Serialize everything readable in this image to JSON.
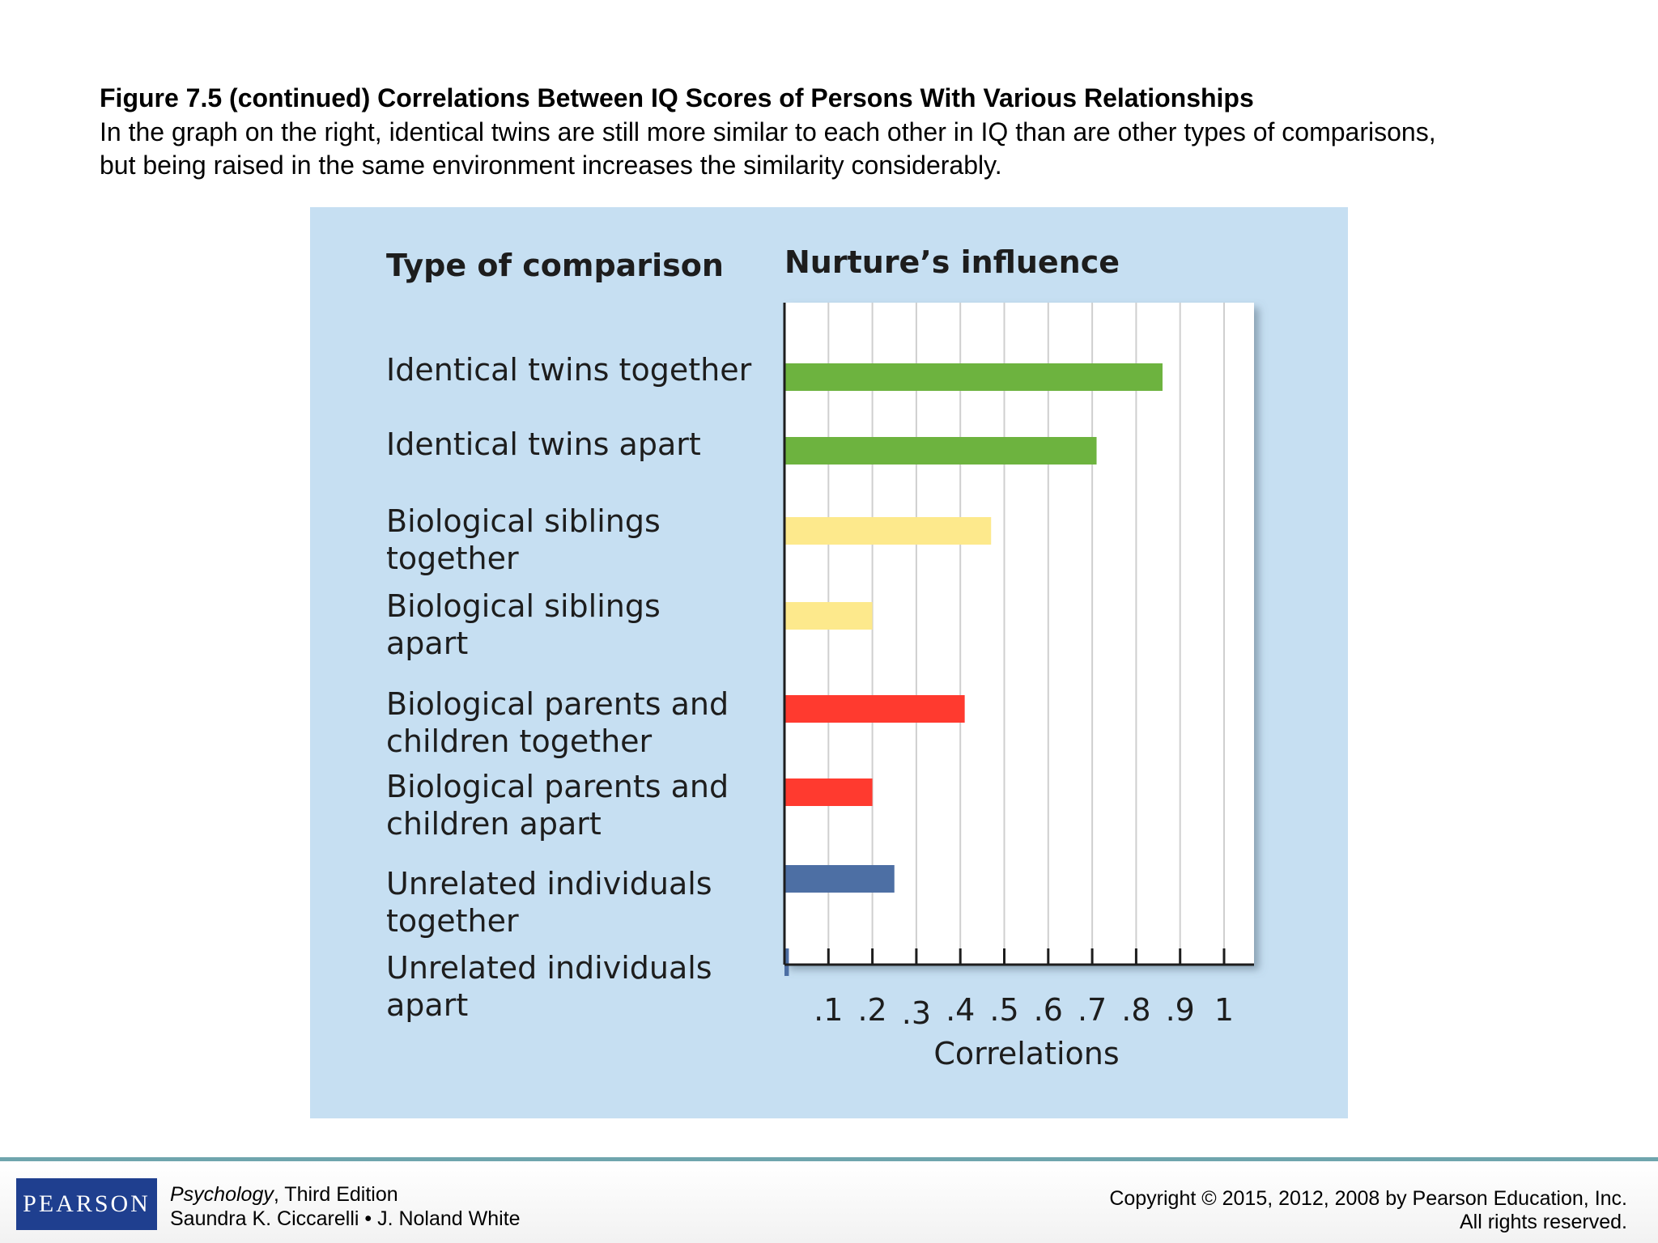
{
  "caption": {
    "title": "Figure 7.5 (continued) Correlations Between IQ Scores of Persons With Various Relationships",
    "line1": "In the graph on the right, identical twins are still more similar to each other in IQ than are other types of comparisons,",
    "line2": "but being raised in the same environment increases the similarity considerably."
  },
  "chart_data": {
    "type": "bar",
    "orientation": "horizontal",
    "category_header": "Type of comparison",
    "title": "Nurture’s influence",
    "xlabel": "Correlations",
    "xlim": [
      0,
      1.1
    ],
    "grid": true,
    "tick_labels": [
      ".1",
      ".2",
      ".3",
      ".4",
      ".5",
      ".6",
      ".7",
      ".8",
      ".9",
      "1"
    ],
    "categories": [
      [
        "Identical twins together"
      ],
      [
        "Identical twins apart"
      ],
      [
        "Biological siblings",
        "together"
      ],
      [
        "Biological siblings",
        "apart"
      ],
      [
        "Biological parents and",
        "children together"
      ],
      [
        "Biological parents and",
        "children apart"
      ],
      [
        "Unrelated individuals",
        "together"
      ],
      [
        "Unrelated individuals",
        "apart"
      ]
    ],
    "values": [
      0.86,
      0.71,
      0.47,
      0.2,
      0.41,
      0.2,
      0.25,
      0.01
    ],
    "colors": [
      "#6db33f",
      "#6db33f",
      "#fde98c",
      "#fde98c",
      "#ff3a2f",
      "#ff3a2f",
      "#4d6fa4",
      "#4d6fa4"
    ],
    "panel_color": "#c6dff2",
    "plot_bg": "#ffffff",
    "grid_color": "#cfcfcf"
  },
  "footer": {
    "logo": "PEARSON",
    "book_title": "Psychology",
    "edition": ", Third Edition",
    "authors": "Saundra K. Ciccarelli • J. Noland White",
    "copyright": "Copyright © 2015, 2012, 2008 by Pearson Education, Inc.",
    "rights": "All rights reserved."
  }
}
